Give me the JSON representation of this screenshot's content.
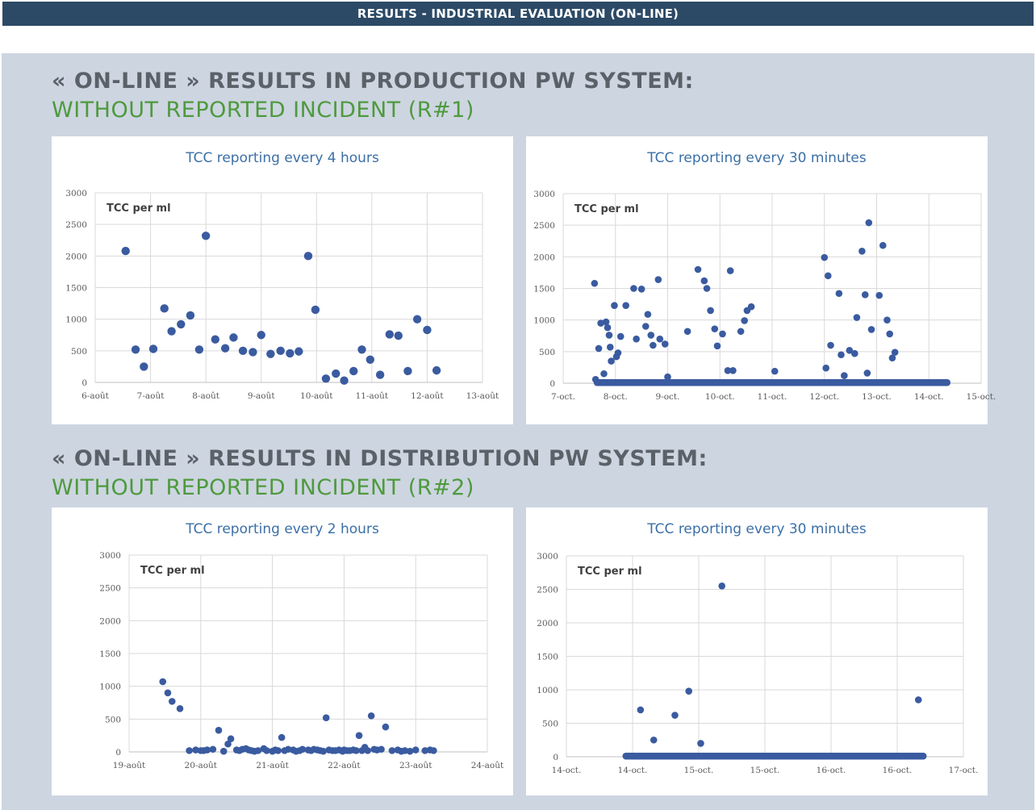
{
  "header": {
    "title": "RESULTS - INDUSTRIAL EVALUATION (ON-LINE)"
  },
  "sections": [
    {
      "line1": "« ON-LINE » RESULTS IN  PRODUCTION PW SYSTEM:",
      "line2": "WITHOUT REPORTED INCIDENT (R#1)"
    },
    {
      "line1": "« ON-LINE » RESULTS IN  DISTRIBUTION PW SYSTEM:",
      "line2": "WITHOUT REPORTED INCIDENT (R#2)"
    }
  ],
  "colors": {
    "header_bg": "#2c4a66",
    "panel_bg": "#cdd5e1",
    "green": "#4e9a3d",
    "point": "#3a5ba0",
    "title_blue": "#3b6fa6"
  },
  "chart_data": [
    {
      "type": "scatter",
      "title": "TCC reporting every 4 hours",
      "ylabel": "TCC per ml",
      "ylim": [
        0,
        3000
      ],
      "yticks": [
        0,
        500,
        1000,
        1500,
        2000,
        2500,
        3000
      ],
      "xlim": [
        0,
        7
      ],
      "xticks": [
        "6-août",
        "7-août",
        "8-août",
        "9-août",
        "10-août",
        "11-août",
        "12-août",
        "13-août"
      ],
      "grid": true,
      "x": [
        0.55,
        0.73,
        0.88,
        1.05,
        1.25,
        1.38,
        1.55,
        1.72,
        1.88,
        2.0,
        2.17,
        2.35,
        2.5,
        2.67,
        2.85,
        3.0,
        3.17,
        3.35,
        3.52,
        3.68,
        3.85,
        3.98,
        4.17,
        4.35,
        4.5,
        4.67,
        4.82,
        4.97,
        5.15,
        5.32,
        5.48,
        5.65,
        5.82,
        6.0,
        6.17
      ],
      "y": [
        2080,
        520,
        250,
        530,
        1170,
        810,
        920,
        1060,
        520,
        2320,
        680,
        540,
        710,
        500,
        480,
        750,
        450,
        500,
        460,
        490,
        2000,
        1150,
        60,
        140,
        30,
        180,
        520,
        360,
        120,
        760,
        740,
        180,
        1000,
        830,
        190
      ]
    },
    {
      "type": "scatter",
      "title": "TCC reporting every 30 minutes",
      "ylabel": "TCC per ml",
      "ylim": [
        0,
        3000
      ],
      "yticks": [
        0,
        500,
        1000,
        1500,
        2000,
        2500,
        3000
      ],
      "xlim": [
        0,
        8
      ],
      "xticks": [
        "7-oct.",
        "8-oct.",
        "9-oct.",
        "10-oct.",
        "11-oct.",
        "12-oct.",
        "13-oct.",
        "14-oct.",
        "15-oct."
      ],
      "grid": true,
      "x": [
        0.6,
        0.62,
        0.68,
        0.72,
        0.78,
        0.82,
        0.85,
        0.88,
        0.9,
        0.92,
        0.98,
        1.02,
        1.05,
        1.1,
        1.2,
        1.35,
        1.4,
        1.5,
        1.58,
        1.62,
        1.68,
        1.72,
        1.82,
        1.85,
        1.95,
        2.0,
        2.38,
        2.58,
        2.7,
        2.75,
        2.82,
        2.9,
        2.95,
        3.05,
        3.15,
        3.2,
        3.25,
        3.4,
        3.47,
        3.52,
        3.6,
        4.05,
        5.0,
        5.03,
        5.07,
        5.12,
        5.28,
        5.32,
        5.38,
        5.48,
        5.58,
        5.62,
        5.72,
        5.78,
        5.82,
        5.85,
        5.9,
        6.05,
        6.12,
        6.2,
        6.25,
        6.3,
        6.35
      ],
      "y": [
        1580,
        60,
        550,
        950,
        150,
        970,
        880,
        760,
        570,
        350,
        1230,
        420,
        480,
        740,
        1230,
        1500,
        700,
        1490,
        900,
        1090,
        760,
        600,
        1640,
        700,
        620,
        100,
        820,
        1800,
        1620,
        1500,
        1150,
        860,
        590,
        780,
        200,
        1780,
        200,
        820,
        990,
        1150,
        1210,
        190,
        1990,
        240,
        1700,
        600,
        1420,
        450,
        120,
        520,
        470,
        1040,
        2090,
        1400,
        160,
        2540,
        850,
        1390,
        2180,
        1000,
        780,
        400,
        490
      ],
      "baseline": {
        "from": 0.65,
        "to": 7.35,
        "value": 10,
        "step": 0.0208
      }
    },
    {
      "type": "scatter",
      "title": "TCC reporting every 2 hours",
      "ylabel": "TCC per ml",
      "ylim": [
        0,
        3000
      ],
      "yticks": [
        0,
        500,
        1000,
        1500,
        2000,
        2500,
        3000
      ],
      "xlim": [
        0,
        5
      ],
      "xticks": [
        "19-août",
        "20-août",
        "21-août",
        "22-août",
        "23-août",
        "24-août"
      ],
      "grid": true,
      "x": [
        0.47,
        0.54,
        0.6,
        0.71,
        0.84,
        0.93,
        1.0,
        1.04,
        1.09,
        1.17,
        1.25,
        1.32,
        1.38,
        1.42,
        1.5,
        1.54,
        1.58,
        1.63,
        1.67,
        1.71,
        1.75,
        1.8,
        1.88,
        1.92,
        2.0,
        2.04,
        2.08,
        2.13,
        2.17,
        2.22,
        2.29,
        2.33,
        2.38,
        2.42,
        2.5,
        2.54,
        2.58,
        2.63,
        2.67,
        2.71,
        2.75,
        2.79,
        2.84,
        2.88,
        2.93,
        2.98,
        3.0,
        3.04,
        3.08,
        3.13,
        3.17,
        3.21,
        3.25,
        3.29,
        3.33,
        3.38,
        3.42,
        3.46,
        3.52,
        3.58,
        3.67,
        3.75,
        3.8,
        3.85,
        3.92,
        4.0,
        4.13,
        4.2,
        4.25
      ],
      "y": [
        1070,
        900,
        770,
        660,
        20,
        30,
        20,
        20,
        30,
        40,
        330,
        10,
        120,
        200,
        30,
        20,
        40,
        50,
        30,
        20,
        10,
        20,
        50,
        20,
        10,
        30,
        20,
        220,
        20,
        40,
        30,
        10,
        20,
        40,
        30,
        20,
        40,
        30,
        20,
        10,
        520,
        30,
        20,
        20,
        30,
        10,
        30,
        20,
        20,
        30,
        20,
        250,
        20,
        70,
        20,
        550,
        40,
        30,
        40,
        380,
        20,
        30,
        10,
        20,
        10,
        30,
        20,
        30,
        20
      ]
    },
    {
      "type": "scatter",
      "title": "TCC reporting every 30 minutes",
      "ylabel": "TCC per ml",
      "ylim": [
        0,
        3000
      ],
      "yticks": [
        0,
        500,
        1000,
        1500,
        2000,
        2500,
        3000
      ],
      "xlim": [
        0,
        6
      ],
      "xticks": [
        "14-oct.",
        "14-oct.",
        "15-oct.",
        "15-oct.",
        "16-oct.",
        "16-oct.",
        "17-oct."
      ],
      "grid": true,
      "x": [
        1.12,
        1.32,
        1.64,
        1.85,
        2.03,
        2.35,
        5.32
      ],
      "y": [
        700,
        250,
        620,
        980,
        200,
        2550,
        850
      ],
      "baseline": {
        "from": 0.9,
        "to": 5.4,
        "value": 10,
        "step": 0.0208
      }
    }
  ]
}
